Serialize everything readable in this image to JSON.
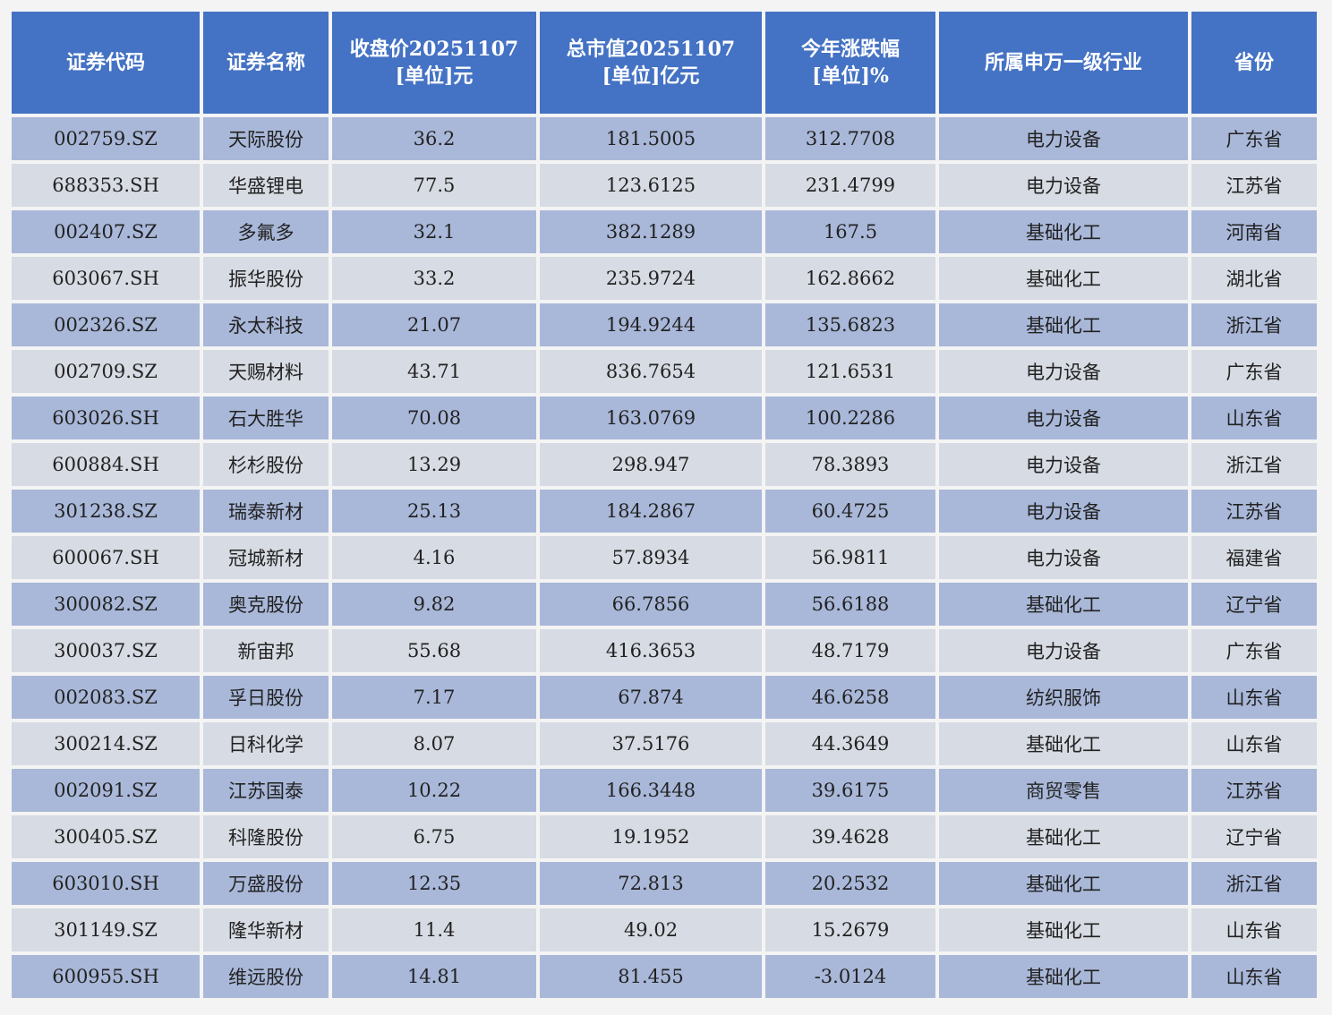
{
  "table": {
    "headers": [
      {
        "key": "code",
        "lines": [
          "证券代码"
        ]
      },
      {
        "key": "name",
        "lines": [
          "证券名称"
        ]
      },
      {
        "key": "close",
        "lines": [
          "收盘价20251107",
          "[单位]元"
        ]
      },
      {
        "key": "mcap",
        "lines": [
          "总市值20251107",
          "[单位]亿元"
        ]
      },
      {
        "key": "ytd",
        "lines": [
          "今年涨跌幅",
          "[单位]%"
        ]
      },
      {
        "key": "industry",
        "lines": [
          "所属申万一级行业"
        ]
      },
      {
        "key": "province",
        "lines": [
          "省份"
        ]
      }
    ],
    "rows": [
      [
        "002759.SZ",
        "天际股份",
        "36.2",
        "181.5005",
        "312.7708",
        "电力设备",
        "广东省"
      ],
      [
        "688353.SH",
        "华盛锂电",
        "77.5",
        "123.6125",
        "231.4799",
        "电力设备",
        "江苏省"
      ],
      [
        "002407.SZ",
        "多氟多",
        "32.1",
        "382.1289",
        "167.5",
        "基础化工",
        "河南省"
      ],
      [
        "603067.SH",
        "振华股份",
        "33.2",
        "235.9724",
        "162.8662",
        "基础化工",
        "湖北省"
      ],
      [
        "002326.SZ",
        "永太科技",
        "21.07",
        "194.9244",
        "135.6823",
        "基础化工",
        "浙江省"
      ],
      [
        "002709.SZ",
        "天赐材料",
        "43.71",
        "836.7654",
        "121.6531",
        "电力设备",
        "广东省"
      ],
      [
        "603026.SH",
        "石大胜华",
        "70.08",
        "163.0769",
        "100.2286",
        "电力设备",
        "山东省"
      ],
      [
        "600884.SH",
        "杉杉股份",
        "13.29",
        "298.947",
        "78.3893",
        "电力设备",
        "浙江省"
      ],
      [
        "301238.SZ",
        "瑞泰新材",
        "25.13",
        "184.2867",
        "60.4725",
        "电力设备",
        "江苏省"
      ],
      [
        "600067.SH",
        "冠城新材",
        "4.16",
        "57.8934",
        "56.9811",
        "电力设备",
        "福建省"
      ],
      [
        "300082.SZ",
        "奥克股份",
        "9.82",
        "66.7856",
        "56.6188",
        "基础化工",
        "辽宁省"
      ],
      [
        "300037.SZ",
        "新宙邦",
        "55.68",
        "416.3653",
        "48.7179",
        "电力设备",
        "广东省"
      ],
      [
        "002083.SZ",
        "孚日股份",
        "7.17",
        "67.874",
        "46.6258",
        "纺织服饰",
        "山东省"
      ],
      [
        "300214.SZ",
        "日科化学",
        "8.07",
        "37.5176",
        "44.3649",
        "基础化工",
        "山东省"
      ],
      [
        "002091.SZ",
        "江苏国泰",
        "10.22",
        "166.3448",
        "39.6175",
        "商贸零售",
        "江苏省"
      ],
      [
        "300405.SZ",
        "科隆股份",
        "6.75",
        "19.1952",
        "39.4628",
        "基础化工",
        "辽宁省"
      ],
      [
        "603010.SH",
        "万盛股份",
        "12.35",
        "72.813",
        "20.2532",
        "基础化工",
        "浙江省"
      ],
      [
        "301149.SZ",
        "隆华新材",
        "11.4",
        "49.02",
        "15.2679",
        "基础化工",
        "山东省"
      ],
      [
        "600955.SH",
        "维远股份",
        "14.81",
        "81.455",
        "-3.0124",
        "基础化工",
        "山东省"
      ]
    ]
  },
  "colors": {
    "header_bg": "#4472c4",
    "header_text": "#ffffff",
    "row_odd_bg": "#a9b8d9",
    "row_even_bg": "#d7dbe3"
  }
}
